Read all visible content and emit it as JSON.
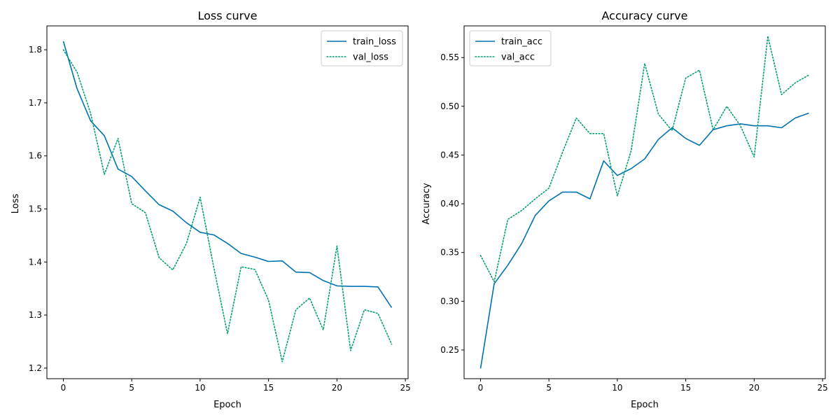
{
  "chart_data": [
    {
      "type": "line",
      "title": "Loss curve",
      "xlabel": "Epoch",
      "ylabel": "Loss",
      "xlim": [
        -1.2,
        25.2
      ],
      "ylim": [
        1.18,
        1.845
      ],
      "xticks": [
        0,
        5,
        10,
        15,
        20,
        25
      ],
      "yticks": [
        1.2,
        1.3,
        1.4,
        1.5,
        1.6,
        1.7,
        1.8
      ],
      "ytick_labels": [
        "1.2",
        "1.3",
        "1.4",
        "1.5",
        "1.6",
        "1.7",
        "1.8"
      ],
      "grid": false,
      "legend_position": "top-right",
      "x": [
        0,
        1,
        2,
        3,
        4,
        5,
        6,
        7,
        8,
        9,
        10,
        11,
        12,
        13,
        14,
        15,
        16,
        17,
        18,
        19,
        20,
        21,
        22,
        23,
        24
      ],
      "series": [
        {
          "name": "train_loss",
          "color": "#0072b2",
          "style": "solid",
          "values": [
            1.816,
            1.727,
            1.666,
            1.638,
            1.575,
            1.561,
            1.534,
            1.508,
            1.496,
            1.474,
            1.456,
            1.451,
            1.435,
            1.416,
            1.409,
            1.401,
            1.402,
            1.381,
            1.38,
            1.365,
            1.355,
            1.354,
            1.354,
            1.353,
            1.314
          ]
        },
        {
          "name": "val_loss",
          "color": "#009e73",
          "style": "dotted",
          "values": [
            1.8,
            1.758,
            1.68,
            1.565,
            1.633,
            1.51,
            1.493,
            1.408,
            1.385,
            1.435,
            1.522,
            1.389,
            1.265,
            1.391,
            1.386,
            1.328,
            1.212,
            1.31,
            1.332,
            1.272,
            1.43,
            1.233,
            1.31,
            1.303,
            1.245
          ]
        }
      ]
    },
    {
      "type": "line",
      "title": "Accuracy curve",
      "xlabel": "Epoch",
      "ylabel": "Accuracy",
      "xlim": [
        -1.2,
        25.2
      ],
      "ylim": [
        0.2205,
        0.5825
      ],
      "xticks": [
        0,
        5,
        10,
        15,
        20,
        25
      ],
      "yticks": [
        0.25,
        0.3,
        0.35,
        0.4,
        0.45,
        0.5,
        0.55
      ],
      "ytick_labels": [
        "0.25",
        "0.30",
        "0.35",
        "0.40",
        "0.45",
        "0.50",
        "0.55"
      ],
      "grid": false,
      "legend_position": "top-left",
      "x": [
        0,
        1,
        2,
        3,
        4,
        5,
        6,
        7,
        8,
        9,
        10,
        11,
        12,
        13,
        14,
        15,
        16,
        17,
        18,
        19,
        20,
        21,
        22,
        23,
        24
      ],
      "series": [
        {
          "name": "train_acc",
          "color": "#0072b2",
          "style": "solid",
          "values": [
            0.231,
            0.318,
            0.337,
            0.359,
            0.388,
            0.403,
            0.412,
            0.412,
            0.405,
            0.444,
            0.429,
            0.436,
            0.446,
            0.466,
            0.478,
            0.467,
            0.46,
            0.476,
            0.48,
            0.482,
            0.48,
            0.48,
            0.478,
            0.488,
            0.493
          ]
        },
        {
          "name": "val_acc",
          "color": "#009e73",
          "style": "dotted",
          "values": [
            0.347,
            0.32,
            0.384,
            0.393,
            0.405,
            0.416,
            0.453,
            0.488,
            0.472,
            0.472,
            0.408,
            0.454,
            0.544,
            0.492,
            0.475,
            0.529,
            0.537,
            0.476,
            0.5,
            0.48,
            0.448,
            0.572,
            0.512,
            0.524,
            0.532
          ]
        }
      ]
    }
  ]
}
